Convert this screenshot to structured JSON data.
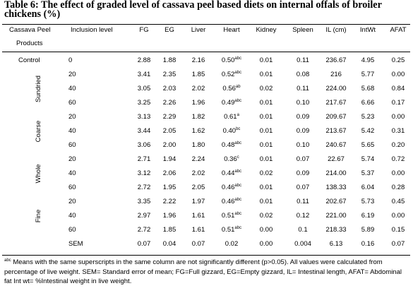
{
  "caption": "Table 6:  The effect of graded level of cassava peel based diets on internal offals of broiler chickens (%)",
  "headers": {
    "product_line1": "Cassava Peel",
    "product_line2": "Products",
    "inclusion": "Inclusion level",
    "cols": [
      "FG",
      "EG",
      "Liver",
      "Heart",
      "Kidney",
      "Spleen",
      "IL (cm)",
      "IntWt",
      "AFAT"
    ]
  },
  "groups": [
    "Sundried",
    "Coarse",
    "Whole",
    "Fine"
  ],
  "rows": [
    {
      "product": "Control",
      "level": "0",
      "fg": "2.88",
      "eg": "1.88",
      "liver": "2.16",
      "heart": "0.50",
      "heart_sup": "abc",
      "kidney": "0.01",
      "spleen": "0.11",
      "il": "236.67",
      "intwt": "4.95",
      "afat": "0.25"
    },
    {
      "product": "",
      "level": "20",
      "fg": "3.41",
      "eg": "2.35",
      "liver": "1.85",
      "heart": "0.52",
      "heart_sup": "abc",
      "kidney": "0.01",
      "spleen": "0.08",
      "il": "216",
      "intwt": "5.77",
      "afat": "0.00"
    },
    {
      "product": "",
      "level": "40",
      "fg": "3.05",
      "eg": "2.03",
      "liver": "2.02",
      "heart": "0.56",
      "heart_sup": "ab",
      "kidney": "0.02",
      "spleen": "0.11",
      "il": "224.00",
      "intwt": "5.68",
      "afat": "0.84"
    },
    {
      "product": "",
      "level": "60",
      "fg": "3.25",
      "eg": "2.26",
      "liver": "1.96",
      "heart": "0.49",
      "heart_sup": "abc",
      "kidney": "0.01",
      "spleen": "0.10",
      "il": "217.67",
      "intwt": "6.66",
      "afat": "0.17"
    },
    {
      "product": "",
      "level": "20",
      "fg": "3.13",
      "eg": "2.29",
      "liver": "1.82",
      "heart": "0.61",
      "heart_sup": "a",
      "kidney": "0.01",
      "spleen": "0.09",
      "il": "209.67",
      "intwt": "5.23",
      "afat": "0.00"
    },
    {
      "product": "",
      "level": "40",
      "fg": "3.44",
      "eg": "2.05",
      "liver": "1.62",
      "heart": "0.40",
      "heart_sup": "bc",
      "kidney": "0.01",
      "spleen": "0.09",
      "il": "213.67",
      "intwt": "5.42",
      "afat": "0.31"
    },
    {
      "product": "",
      "level": "60",
      "fg": "3.06",
      "eg": "2.00",
      "liver": "1.80",
      "heart": "0.48",
      "heart_sup": "abc",
      "kidney": "0.01",
      "spleen": "0.10",
      "il": "240.67",
      "intwt": "5.65",
      "afat": "0.20"
    },
    {
      "product": "",
      "level": "20",
      "fg": "2.71",
      "eg": "1.94",
      "liver": "2.24",
      "heart": "0.36",
      "heart_sup": "c",
      "kidney": "0.01",
      "spleen": "0.07",
      "il": "22.67",
      "intwt": "5.74",
      "afat": "0.72"
    },
    {
      "product": "",
      "level": "40",
      "fg": "3.12",
      "eg": "2.06",
      "liver": "2.02",
      "heart": "0.44",
      "heart_sup": "abc",
      "kidney": "0.02",
      "spleen": "0.09",
      "il": "214.00",
      "intwt": "5.37",
      "afat": "0.00"
    },
    {
      "product": "",
      "level": "60",
      "fg": "2.72",
      "eg": "1.95",
      "liver": "2.05",
      "heart": "0.46",
      "heart_sup": "abc",
      "kidney": "0.01",
      "spleen": "0.07",
      "il": "138.33",
      "intwt": "6.04",
      "afat": "0.28"
    },
    {
      "product": "",
      "level": "20",
      "fg": "3.35",
      "eg": "2.22",
      "liver": "1.97",
      "heart": "0.46",
      "heart_sup": "abc",
      "kidney": "0.01",
      "spleen": "0.11",
      "il": "202.67",
      "intwt": "5.73",
      "afat": "0.45"
    },
    {
      "product": "",
      "level": "40",
      "fg": "2.97",
      "eg": "1.96",
      "liver": "1.61",
      "heart": "0.51",
      "heart_sup": "abc",
      "kidney": "0.02",
      "spleen": "0.12",
      "il": "221.00",
      "intwt": "6.19",
      "afat": "0.00"
    },
    {
      "product": "",
      "level": "60",
      "fg": "2.72",
      "eg": "1.85",
      "liver": "1.61",
      "heart": "0.51",
      "heart_sup": "abc",
      "kidney": "0.00",
      "spleen": "0.1",
      "il": "218.33",
      "intwt": "5.89",
      "afat": "0.15"
    },
    {
      "product": "",
      "level": "SEM",
      "fg": "0.07",
      "eg": "0.04",
      "liver": "0.07",
      "heart": "0.02",
      "heart_sup": "",
      "kidney": "0.00",
      "spleen": "0.004",
      "il": "6.13",
      "intwt": "0.16",
      "afat": "0.07"
    }
  ],
  "footnote": {
    "sup": "abc",
    "text": " Means with the same superscripts in the same column are not significantly different (p>0.05). All values were calculated from percentage of live weight. SEM= Standard error of mean; FG=Full gizzard, EG=Empty gizzard, IL= Intestinal length, AFAT= Abdominal fat Int wt= %Intestinal weight in live weight."
  }
}
